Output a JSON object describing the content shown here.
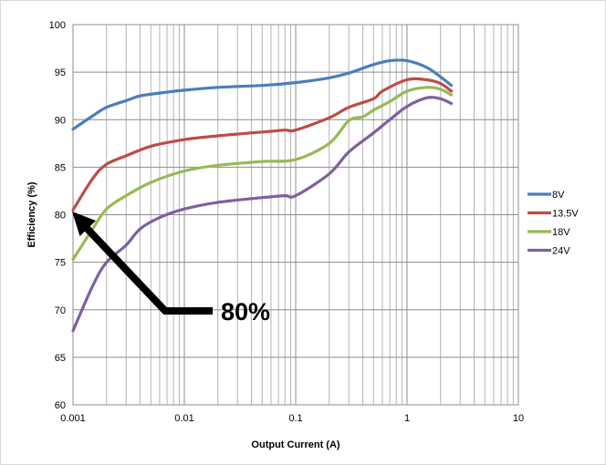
{
  "chart_data": {
    "type": "line",
    "title": "",
    "xlabel": "Output Current (A)",
    "ylabel": "Efficiency (%)",
    "xscale": "log",
    "xlim": [
      0.001,
      10
    ],
    "ylim": [
      60,
      100
    ],
    "x_ticks": [
      0.001,
      0.01,
      0.1,
      1,
      10
    ],
    "x_tick_labels": [
      "0.001",
      "0.01",
      "0.1",
      "1",
      "10"
    ],
    "y_ticks": [
      60,
      65,
      70,
      75,
      80,
      85,
      90,
      95,
      100
    ],
    "y_tick_labels": [
      "60",
      "65",
      "70",
      "75",
      "80",
      "85",
      "90",
      "95",
      "100"
    ],
    "grid": "major and minor",
    "legend": "right",
    "series": [
      {
        "name": "8V",
        "color": "#4a7ebb",
        "points": [
          [
            0.001,
            89.0
          ],
          [
            0.0015,
            90.4
          ],
          [
            0.002,
            91.3
          ],
          [
            0.003,
            92.0
          ],
          [
            0.004,
            92.5
          ],
          [
            0.006,
            92.8
          ],
          [
            0.01,
            93.1
          ],
          [
            0.02,
            93.4
          ],
          [
            0.05,
            93.6
          ],
          [
            0.1,
            93.9
          ],
          [
            0.2,
            94.4
          ],
          [
            0.3,
            94.9
          ],
          [
            0.5,
            95.8
          ],
          [
            0.7,
            96.2
          ],
          [
            1.0,
            96.2
          ],
          [
            1.5,
            95.5
          ],
          [
            2.0,
            94.5
          ],
          [
            2.5,
            93.6
          ]
        ]
      },
      {
        "name": "13.5V",
        "color": "#be4b48",
        "points": [
          [
            0.001,
            80.5
          ],
          [
            0.0015,
            83.8
          ],
          [
            0.002,
            85.3
          ],
          [
            0.003,
            86.2
          ],
          [
            0.005,
            87.2
          ],
          [
            0.01,
            87.9
          ],
          [
            0.02,
            88.3
          ],
          [
            0.05,
            88.7
          ],
          [
            0.08,
            88.9
          ],
          [
            0.1,
            88.9
          ],
          [
            0.2,
            90.2
          ],
          [
            0.3,
            91.3
          ],
          [
            0.5,
            92.2
          ],
          [
            0.6,
            93.0
          ],
          [
            1.0,
            94.2
          ],
          [
            1.5,
            94.2
          ],
          [
            2.0,
            93.8
          ],
          [
            2.5,
            93.0
          ]
        ]
      },
      {
        "name": "18V",
        "color": "#98b954",
        "points": [
          [
            0.001,
            75.3
          ],
          [
            0.0015,
            78.5
          ],
          [
            0.002,
            80.6
          ],
          [
            0.003,
            82.0
          ],
          [
            0.005,
            83.4
          ],
          [
            0.01,
            84.6
          ],
          [
            0.02,
            85.2
          ],
          [
            0.05,
            85.6
          ],
          [
            0.1,
            85.8
          ],
          [
            0.2,
            87.5
          ],
          [
            0.3,
            89.9
          ],
          [
            0.4,
            90.3
          ],
          [
            0.5,
            91.0
          ],
          [
            0.7,
            91.9
          ],
          [
            1.0,
            93.0
          ],
          [
            1.5,
            93.4
          ],
          [
            2.0,
            93.2
          ],
          [
            2.5,
            92.6
          ]
        ]
      },
      {
        "name": "24V",
        "color": "#7d60a0",
        "points": [
          [
            0.001,
            67.8
          ],
          [
            0.0015,
            72.5
          ],
          [
            0.002,
            75.0
          ],
          [
            0.003,
            76.8
          ],
          [
            0.004,
            78.5
          ],
          [
            0.006,
            79.7
          ],
          [
            0.01,
            80.6
          ],
          [
            0.02,
            81.3
          ],
          [
            0.05,
            81.8
          ],
          [
            0.08,
            82.0
          ],
          [
            0.1,
            82.0
          ],
          [
            0.2,
            84.3
          ],
          [
            0.3,
            86.6
          ],
          [
            0.5,
            88.6
          ],
          [
            0.7,
            90.0
          ],
          [
            1.0,
            91.4
          ],
          [
            1.5,
            92.3
          ],
          [
            2.0,
            92.2
          ],
          [
            2.5,
            91.7
          ]
        ]
      }
    ],
    "annotations": [
      {
        "text": "80%",
        "points_to": [
          0.001,
          80
        ]
      }
    ]
  }
}
